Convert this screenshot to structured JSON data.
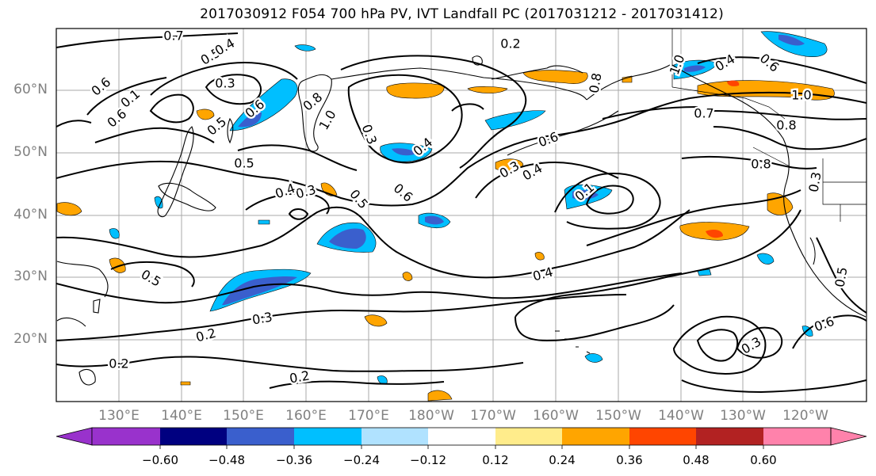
{
  "title": "2017030912 F054 700 hPa PV, IVT Landfall PC (2017031212 - 2017031412)",
  "lat_labels": [
    "60°N",
    "50°N",
    "40°N",
    "30°N",
    "20°N"
  ],
  "lon_labels": [
    "130°E",
    "140°E",
    "150°E",
    "160°E",
    "170°E",
    "180°W",
    "170°W",
    "160°W",
    "150°W",
    "140°W",
    "130°W",
    "120°W"
  ],
  "colorbar": {
    "colors": [
      "#9932CC",
      "#000080",
      "#3A5FCD",
      "#00BFFF",
      "#B0E2FF",
      "#FFFFFF",
      "#FFEC8B",
      "#FFA500",
      "#FF4500",
      "#B22222",
      "#FF82AB"
    ],
    "tick_labels": [
      "−0.60",
      "−0.48",
      "−0.36",
      "−0.24",
      "−0.12",
      "0.12",
      "0.24",
      "0.36",
      "0.48",
      "0.60"
    ]
  },
  "contour_labels": [
    "0.7",
    "0.5",
    "0.4",
    "0.3",
    "0.6",
    "0.1",
    "0.6",
    "0.5",
    "0.6",
    "0.8",
    "1.0",
    "0.3",
    "0.5",
    "0.4",
    "0.5",
    "0.6",
    "0.2",
    "0.3",
    "0.4",
    "0.6",
    "0.3",
    "0.4",
    "0.1",
    "0.8",
    "1.0",
    "0.7",
    "0.4",
    "0.6",
    "1.0",
    "0.8",
    "0.8",
    "0.3",
    "0.5",
    "0.5",
    "0.2",
    "0.2",
    "0.3",
    "0.4",
    "0.2",
    "0.3",
    "0.6"
  ]
}
